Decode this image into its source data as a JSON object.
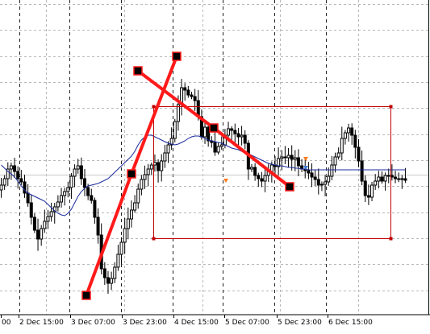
{
  "colors": {
    "background": "#ffffff",
    "candle": "#000000",
    "grid": "#b8b8b8",
    "moving_average": "#1a2a9c",
    "trendline": "#ff1a1a",
    "rectangle": "#c00000",
    "anchor": "#000000",
    "arrow_buy": "#3a7ad8",
    "arrow_sell": "#ff7a1a"
  },
  "chart_data": {
    "type": "candlestick",
    "title": "",
    "xlabel": "",
    "ylabel": "",
    "grid": true,
    "x_ticks": [
      {
        "label": "00",
        "index": 0
      },
      {
        "label": "2 Dec 15:00",
        "index": 16
      },
      {
        "label": "3 Dec 07:00",
        "index": 32
      },
      {
        "label": "3 Dec 23:00",
        "index": 48
      },
      {
        "label": "4 Dec 15:00",
        "index": 64
      },
      {
        "label": "5 Dec 07:00",
        "index": 80
      },
      {
        "label": "5 Dec 23:00",
        "index": 96
      },
      {
        "label": "6 Dec 15:00",
        "index": 112
      }
    ],
    "candle_count": 122,
    "price_range": [
      0,
      415
    ],
    "closes": [
      230,
      222,
      210,
      206,
      213,
      222,
      226,
      240,
      252,
      270,
      286,
      297,
      284,
      275,
      269,
      263,
      257,
      251,
      243,
      238,
      233,
      219,
      210,
      206,
      222,
      233,
      243,
      249,
      270,
      292,
      334,
      345,
      352,
      346,
      332,
      316,
      301,
      284,
      272,
      261,
      252,
      235,
      223,
      217,
      210,
      205,
      202,
      212,
      200,
      190,
      180,
      172,
      151,
      130,
      109,
      112,
      118,
      120,
      125,
      145,
      170,
      158,
      175,
      177,
      189,
      182,
      180,
      168,
      160,
      162,
      166,
      170,
      168,
      178,
      210,
      208,
      218,
      222,
      225,
      218,
      213,
      205,
      207,
      197,
      195,
      196,
      193,
      198,
      196,
      206,
      210,
      212,
      215,
      220,
      223,
      230,
      229,
      226,
      219,
      205,
      195,
      190,
      172,
      165,
      159,
      168,
      183,
      200,
      225,
      243,
      245,
      230,
      225,
      220,
      225,
      218,
      218,
      220,
      222,
      223,
      222,
      224
    ],
    "moving_average": [
      205,
      209,
      213,
      216,
      220,
      225,
      231,
      236,
      240,
      242,
      244,
      246,
      248,
      250,
      254,
      258,
      262,
      265,
      267,
      268,
      265,
      260,
      252,
      244,
      238,
      234,
      231,
      230,
      229,
      228,
      226,
      224,
      222,
      218,
      214,
      210,
      206,
      202,
      198,
      194,
      188,
      180,
      174,
      170,
      168,
      168,
      170,
      172,
      174,
      176,
      178,
      179,
      180,
      179,
      177,
      175,
      172,
      170,
      169,
      169,
      170,
      172,
      174,
      175,
      176,
      177,
      178,
      180,
      182,
      184,
      185,
      186,
      188,
      190,
      191,
      193,
      195,
      197,
      199,
      201,
      203,
      204,
      205,
      206,
      206,
      207,
      208,
      208,
      209,
      209,
      210,
      210,
      211,
      211,
      211,
      211,
      211,
      211,
      211,
      211,
      211,
      211,
      211,
      211,
      211,
      211,
      211,
      211,
      211,
      211,
      211,
      211,
      211,
      211,
      211,
      211,
      211,
      211,
      211,
      211,
      211,
      211
    ],
    "trendlines": [
      {
        "from": {
          "index": 33,
          "price": 367
        },
        "to": {
          "index": 59,
          "price": 216
        }
      },
      {
        "from": {
          "index": 59,
          "price": 216
        },
        "to": {
          "index": 72,
          "price": 70
        }
      },
      {
        "from": {
          "index": 69,
          "price": 88
        },
        "to": {
          "index": 106,
          "price": 232
        }
      }
    ],
    "anchor_points": [
      {
        "index": 33,
        "price": 367
      },
      {
        "index": 59,
        "price": 216
      },
      {
        "index": 72,
        "price": 70
      },
      {
        "index": 63,
        "price": 88
      },
      {
        "index": 97,
        "price": 159
      },
      {
        "index": 131,
        "price": 232
      }
    ],
    "rectangle": {
      "index_from": 67,
      "index_to": 126,
      "price_high": 132,
      "price_low": 296
    },
    "markers": [
      {
        "type": "buy",
        "index": 106,
        "price": 211
      },
      {
        "type": "buy",
        "index": 92,
        "price": 224
      },
      {
        "type": "sell",
        "index": 94,
        "price": 195
      }
    ]
  }
}
